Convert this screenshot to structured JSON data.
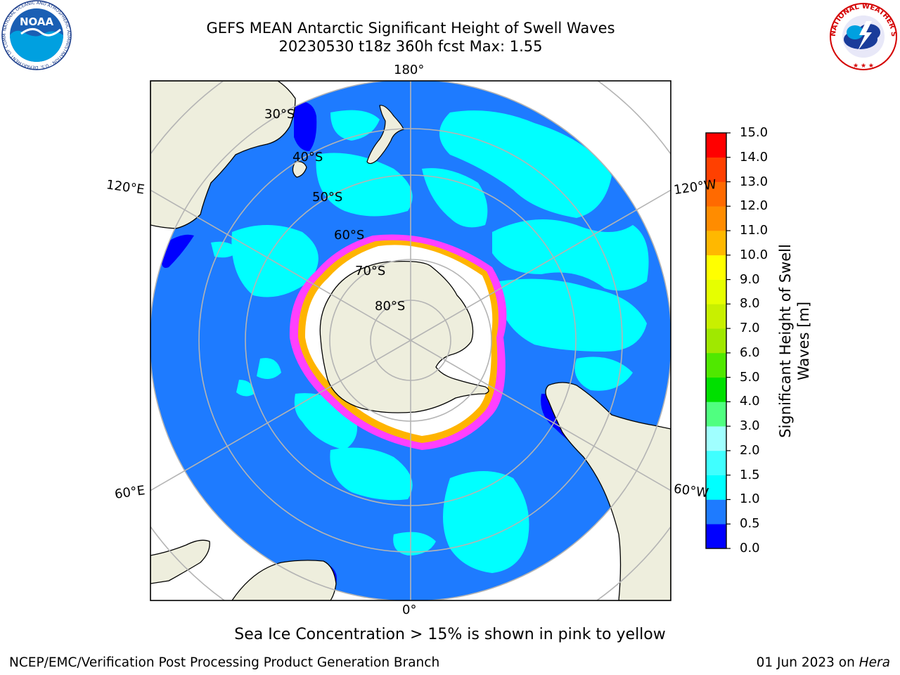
{
  "header": {
    "title_line1": "GEFS MEAN Antarctic Significant Height of Swell Waves",
    "title_line2": "20230530 t18z 360h fcst   Max: 1.55"
  },
  "logos": {
    "left": {
      "text": "NOAA",
      "ring_text": "NATIONAL OCEANIC AND ATMOSPHERIC ADMINISTRATION · U.S. DEPARTMENT OF COMMERCE",
      "icon": "noaa-logo"
    },
    "right": {
      "ring_text": "NATIONAL WEATHER SERVICE",
      "icon": "nws-logo"
    }
  },
  "map": {
    "projection": "south-polar-stereographic",
    "longitude_labels": {
      "top": "180°",
      "bottom": "0°",
      "left_upper": "120°E",
      "left_lower": "60°E",
      "right_upper": "120°W",
      "right_lower": "60°W"
    },
    "latitude_labels": [
      "30°S",
      "40°S",
      "50°S",
      "60°S",
      "70°S",
      "80°S"
    ],
    "colors": {
      "land": "#eeeedd",
      "ocean_low": "#0000ff",
      "ocean_mid": "#1e7bff",
      "ocean_high": "#00ffff",
      "ice_edge": "#ff40ff",
      "ice_inner": "#ffffff",
      "grid": "#b4b4b4"
    }
  },
  "colorbar": {
    "title_line1": "Significant Height of Swell",
    "title_line2": "Waves [m]",
    "ticks": [
      "0.0",
      "0.5",
      "1.0",
      "1.5",
      "2.0",
      "3.0",
      "4.0",
      "5.0",
      "6.0",
      "7.0",
      "8.0",
      "9.0",
      "10.0",
      "11.0",
      "12.0",
      "13.0",
      "14.0",
      "15.0"
    ],
    "colors": [
      "#0000ff",
      "#1e7bff",
      "#00ffff",
      "#40ffff",
      "#a0ffff",
      "#50ff80",
      "#00e000",
      "#50e800",
      "#a0e800",
      "#c8f000",
      "#e6ff00",
      "#ffff00",
      "#ffb800",
      "#ff8c00",
      "#ff6a00",
      "#ff4000",
      "#ff0000"
    ]
  },
  "footer": {
    "note": "Sea Ice Concentration > 15% is shown in pink to yellow",
    "credit": "NCEP/EMC/Verification Post Processing Product Generation Branch",
    "date": "01 Jun 2023 on",
    "machine": "Hera"
  }
}
